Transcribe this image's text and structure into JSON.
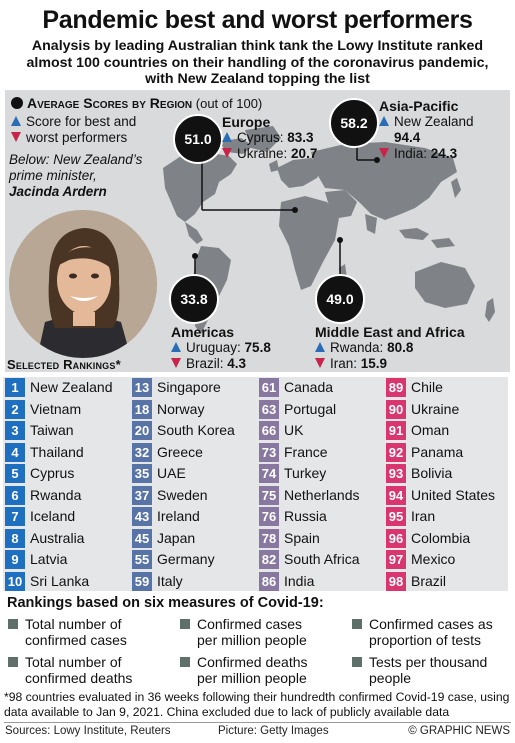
{
  "title": "Pandemic best and worst performers",
  "subtitle": "Analysis by leading Australian think tank the Lowy Institute ranked almost 100 countries on their handling of the coronavirus pandemic, with New Zealand topping the list",
  "legend": {
    "avg_title": "Average Scores by Region",
    "avg_suffix": "(out of 100)",
    "score_line1": "Score for best and",
    "score_line2": "worst performers",
    "photo_caption": "Below: New Zealand’s prime minister,",
    "photo_name": "Jacinda Ardern"
  },
  "regions": {
    "europe": {
      "name": "Europe",
      "avg": "51.0",
      "best": "Cyprus:",
      "best_score": "83.3",
      "worst": "Ukraine:",
      "worst_score": "20.7"
    },
    "asia": {
      "name": "Asia-Pacific",
      "avg": "58.2",
      "best": "New Zealand",
      "best_score": "94.4",
      "worst": "India:",
      "worst_score": "24.3"
    },
    "americas": {
      "name": "Americas",
      "avg": "33.8",
      "best": "Uruguay:",
      "best_score": "75.8",
      "worst": "Brazil:",
      "worst_score": "4.3"
    },
    "mea": {
      "name": "Middle East and Africa",
      "avg": "49.0",
      "best": "Rwanda:",
      "best_score": "80.8",
      "worst": "Iran:",
      "worst_score": "15.9"
    }
  },
  "rankings_title": "Selected Rankings*",
  "colors": {
    "best": "#2a6db5",
    "worst": "#c8244a",
    "bands": [
      "#1f6fc0",
      "#5874a6",
      "#8878a0",
      "#d9366f"
    ]
  },
  "rankings": [
    [
      {
        "rank": "1",
        "country": "New Zealand"
      },
      {
        "rank": "2",
        "country": "Vietnam"
      },
      {
        "rank": "3",
        "country": "Taiwan"
      },
      {
        "rank": "4",
        "country": "Thailand"
      },
      {
        "rank": "5",
        "country": "Cyprus"
      },
      {
        "rank": "6",
        "country": "Rwanda"
      },
      {
        "rank": "7",
        "country": "Iceland"
      },
      {
        "rank": "8",
        "country": "Australia"
      },
      {
        "rank": "9",
        "country": "Latvia"
      },
      {
        "rank": "10",
        "country": "Sri Lanka"
      }
    ],
    [
      {
        "rank": "13",
        "country": "Singapore"
      },
      {
        "rank": "18",
        "country": "Norway"
      },
      {
        "rank": "20",
        "country": "South Korea"
      },
      {
        "rank": "32",
        "country": "Greece"
      },
      {
        "rank": "35",
        "country": "UAE"
      },
      {
        "rank": "37",
        "country": "Sweden"
      },
      {
        "rank": "43",
        "country": "Ireland"
      },
      {
        "rank": "45",
        "country": "Japan"
      },
      {
        "rank": "55",
        "country": "Germany"
      },
      {
        "rank": "59",
        "country": "Italy"
      }
    ],
    [
      {
        "rank": "61",
        "country": "Canada"
      },
      {
        "rank": "63",
        "country": "Portugal"
      },
      {
        "rank": "66",
        "country": "UK"
      },
      {
        "rank": "73",
        "country": "France"
      },
      {
        "rank": "74",
        "country": "Turkey"
      },
      {
        "rank": "75",
        "country": "Netherlands"
      },
      {
        "rank": "76",
        "country": "Russia"
      },
      {
        "rank": "78",
        "country": "Spain"
      },
      {
        "rank": "82",
        "country": "South Africa"
      },
      {
        "rank": "86",
        "country": "India"
      }
    ],
    [
      {
        "rank": "89",
        "country": "Chile"
      },
      {
        "rank": "90",
        "country": "Ukraine"
      },
      {
        "rank": "91",
        "country": "Oman"
      },
      {
        "rank": "92",
        "country": "Panama"
      },
      {
        "rank": "93",
        "country": "Bolivia"
      },
      {
        "rank": "94",
        "country": "United States"
      },
      {
        "rank": "95",
        "country": "Iran"
      },
      {
        "rank": "96",
        "country": "Colombia"
      },
      {
        "rank": "97",
        "country": "Mexico"
      },
      {
        "rank": "98",
        "country": "Brazil"
      }
    ]
  ],
  "measures_title": "Rankings based on six measures of Covid-19:",
  "measures": [
    {
      "l1": "Total number of",
      "l2": "confirmed cases"
    },
    {
      "l1": "Confirmed cases",
      "l2": "per million people"
    },
    {
      "l1": "Confirmed cases as",
      "l2": "proportion of tests"
    },
    {
      "l1": "Total number of",
      "l2": "confirmed deaths"
    },
    {
      "l1": "Confirmed deaths",
      "l2": "per million people"
    },
    {
      "l1": "Tests per thousand",
      "l2": "people"
    }
  ],
  "footnote": "*98 countries evaluated in 36 weeks following their hundredth confirmed Covid-19 case, using data available to Jan 9, 2021. China excluded due to lack of publicly available data",
  "credits": {
    "sources": "Sources: Lowy Institute, Reuters",
    "picture": "Picture: Getty Images",
    "brand": "© GRAPHIC NEWS"
  }
}
